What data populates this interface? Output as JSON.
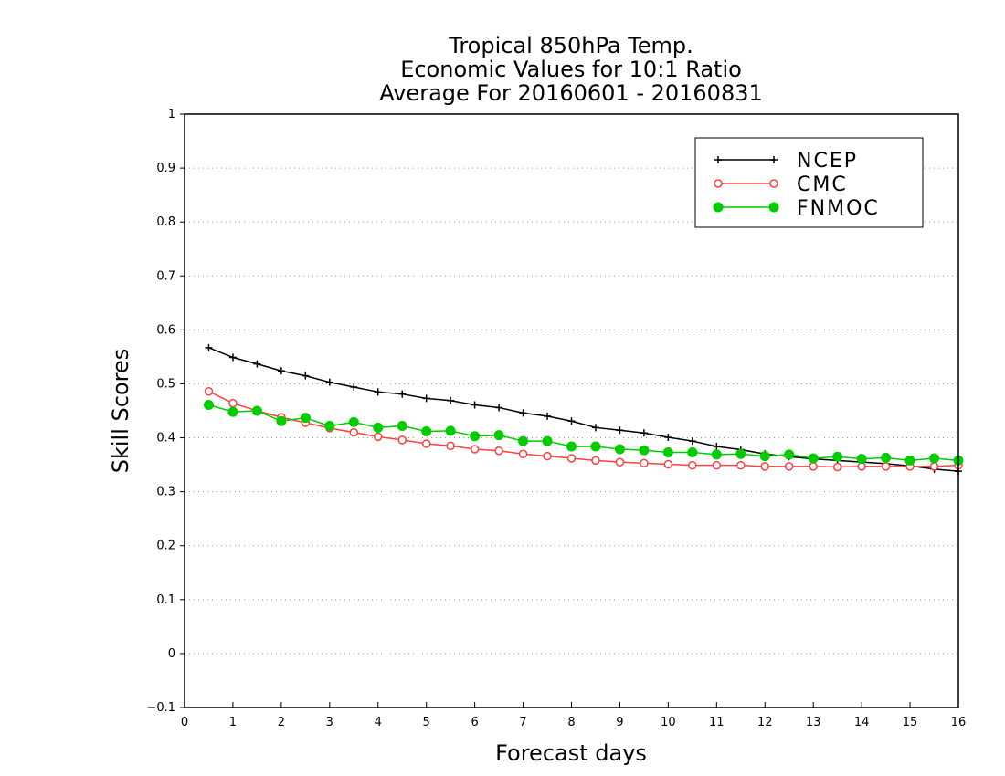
{
  "chart_data": {
    "type": "line",
    "title_lines": [
      "Tropical 850hPa Temp.",
      "Economic Values for 10:1 Ratio",
      "Average For 20160601 - 20160831"
    ],
    "xlabel": "Forecast days",
    "ylabel": "Skill Scores",
    "xlim": [
      0,
      16
    ],
    "ylim": [
      -0.1,
      1
    ],
    "xticks": [
      "0",
      "1",
      "2",
      "3",
      "4",
      "5",
      "6",
      "7",
      "8",
      "9",
      "10",
      "11",
      "12",
      "13",
      "14",
      "15",
      "16"
    ],
    "yticks": [
      "−0.1",
      "0",
      "0.1",
      "0.2",
      "0.3",
      "0.4",
      "0.5",
      "0.6",
      "0.7",
      "0.8",
      "0.9",
      "1"
    ],
    "grid": "horizontal dotted",
    "legend_position": "top-right",
    "x": [
      0.5,
      1,
      1.5,
      2,
      2.5,
      3,
      3.5,
      4,
      4.5,
      5,
      5.5,
      6,
      6.5,
      7,
      7.5,
      8,
      8.5,
      9,
      9.5,
      10,
      10.5,
      11,
      11.5,
      12,
      12.5,
      13,
      13.5,
      14,
      14.5,
      15,
      15.5,
      16
    ],
    "series": [
      {
        "name": "NCEP",
        "color": "#000000",
        "marker": "plus",
        "values": [
          0.567,
          0.549,
          0.537,
          0.524,
          0.515,
          0.503,
          0.494,
          0.485,
          0.481,
          0.473,
          0.469,
          0.461,
          0.456,
          0.446,
          0.44,
          0.431,
          0.419,
          0.414,
          0.409,
          0.401,
          0.394,
          0.384,
          0.378,
          0.37,
          0.365,
          0.361,
          0.358,
          0.355,
          0.352,
          0.348,
          0.342,
          0.338
        ]
      },
      {
        "name": "CMC",
        "color": "#ff4040",
        "marker": "open-circle",
        "values": [
          0.486,
          0.464,
          0.45,
          0.438,
          0.428,
          0.418,
          0.41,
          0.402,
          0.396,
          0.389,
          0.385,
          0.379,
          0.376,
          0.37,
          0.366,
          0.362,
          0.358,
          0.355,
          0.353,
          0.351,
          0.349,
          0.349,
          0.349,
          0.347,
          0.347,
          0.347,
          0.346,
          0.347,
          0.347,
          0.347,
          0.347,
          0.349
        ]
      },
      {
        "name": "FNMOC",
        "color": "#00cc00",
        "marker": "filled-circle",
        "values": [
          0.461,
          0.448,
          0.45,
          0.431,
          0.437,
          0.422,
          0.429,
          0.419,
          0.422,
          0.412,
          0.413,
          0.403,
          0.405,
          0.394,
          0.394,
          0.384,
          0.384,
          0.379,
          0.377,
          0.373,
          0.373,
          0.369,
          0.37,
          0.366,
          0.369,
          0.362,
          0.365,
          0.361,
          0.363,
          0.358,
          0.362,
          0.358
        ]
      }
    ]
  }
}
